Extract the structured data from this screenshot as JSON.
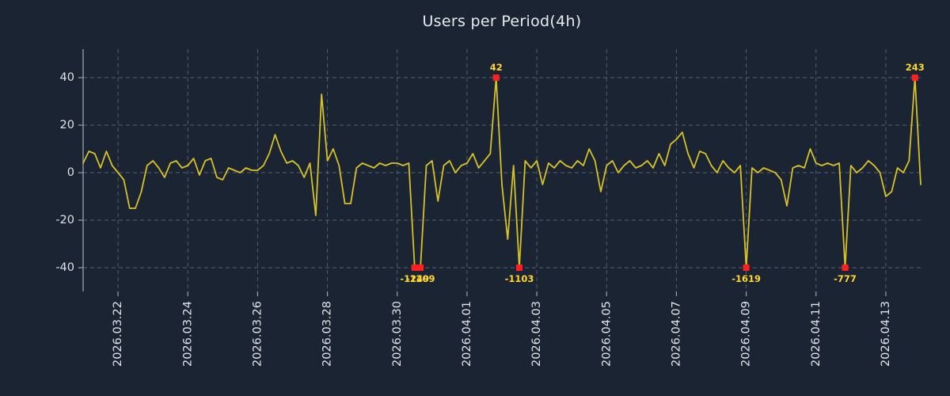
{
  "title": "Users per Period(4h)",
  "colors": {
    "background": "#1b2433",
    "line": "#d6c226",
    "marker": "#ff1f1f",
    "annotation": "#ffd62e",
    "grid": "#8a93a3",
    "axis": "#9aa1ad",
    "tick_label": "#dfe3e8",
    "title": "#e9ecef"
  },
  "chart_data": {
    "type": "line",
    "title": "Users per Period(4h)",
    "x_unit": "4-hour periods from 2026.03.21 to 2026.04.14",
    "ylim": [
      -50,
      52
    ],
    "clip_at": 40,
    "grid": true,
    "legend": null,
    "y_ticks": [
      -40,
      -20,
      0,
      20,
      40
    ],
    "x_ticks": [
      {
        "index": 6,
        "label": "2026.03.22"
      },
      {
        "index": 18,
        "label": "2026.03.24"
      },
      {
        "index": 30,
        "label": "2026.03.26"
      },
      {
        "index": 42,
        "label": "2026.03.28"
      },
      {
        "index": 54,
        "label": "2026.03.30"
      },
      {
        "index": 66,
        "label": "2026.04.01"
      },
      {
        "index": 78,
        "label": "2026.04.03"
      },
      {
        "index": 90,
        "label": "2026.04.05"
      },
      {
        "index": 102,
        "label": "2026.04.07"
      },
      {
        "index": 114,
        "label": "2026.04.09"
      },
      {
        "index": 126,
        "label": "2026.04.11"
      },
      {
        "index": 138,
        "label": "2026.04.13"
      }
    ],
    "series": [
      {
        "name": "users",
        "values": [
          4,
          9,
          8,
          2,
          9,
          3,
          0,
          -3,
          -15,
          -15,
          -8,
          3,
          5,
          2,
          -2,
          4,
          5,
          2,
          3,
          6,
          -1,
          5,
          6,
          -2,
          -3,
          2,
          1,
          0,
          2,
          1,
          1,
          3,
          8,
          16,
          9,
          4,
          5,
          3,
          -2,
          4,
          -18,
          33,
          5,
          10,
          3,
          -13,
          -13,
          2,
          4,
          3,
          2,
          4,
          3,
          4,
          4,
          3,
          4,
          -40,
          -40,
          3,
          5,
          -12,
          3,
          5,
          0,
          3,
          4,
          8,
          2,
          5,
          8,
          40,
          -5,
          -28,
          3,
          -40,
          5,
          2,
          5,
          -5,
          4,
          2,
          5,
          3,
          2,
          5,
          3,
          10,
          5,
          -8,
          3,
          5,
          0,
          3,
          5,
          2,
          3,
          5,
          2,
          8,
          3,
          12,
          14,
          17,
          8,
          2,
          9,
          8,
          3,
          0,
          5,
          2,
          0,
          3,
          -40,
          2,
          0,
          2,
          1,
          0,
          -3,
          -14,
          2,
          3,
          2,
          10,
          4,
          3,
          4,
          3,
          4,
          -40,
          3,
          0,
          2,
          5,
          3,
          0,
          -10,
          -8,
          2,
          0,
          5,
          40,
          -5
        ]
      }
    ],
    "annotations": [
      {
        "index": 57,
        "label": "-1249",
        "value": -1249,
        "placement": "bottom"
      },
      {
        "index": 58,
        "label": "-1209",
        "value": -1209,
        "placement": "bottom"
      },
      {
        "index": 71,
        "label": "42",
        "value": 42,
        "placement": "top"
      },
      {
        "index": 75,
        "label": "-1103",
        "value": -1103,
        "placement": "bottom"
      },
      {
        "index": 114,
        "label": "-1619",
        "value": -1619,
        "placement": "bottom"
      },
      {
        "index": 131,
        "label": "-777",
        "value": -777,
        "placement": "bottom"
      },
      {
        "index": 143,
        "label": "243",
        "value": 243,
        "placement": "top"
      }
    ]
  }
}
